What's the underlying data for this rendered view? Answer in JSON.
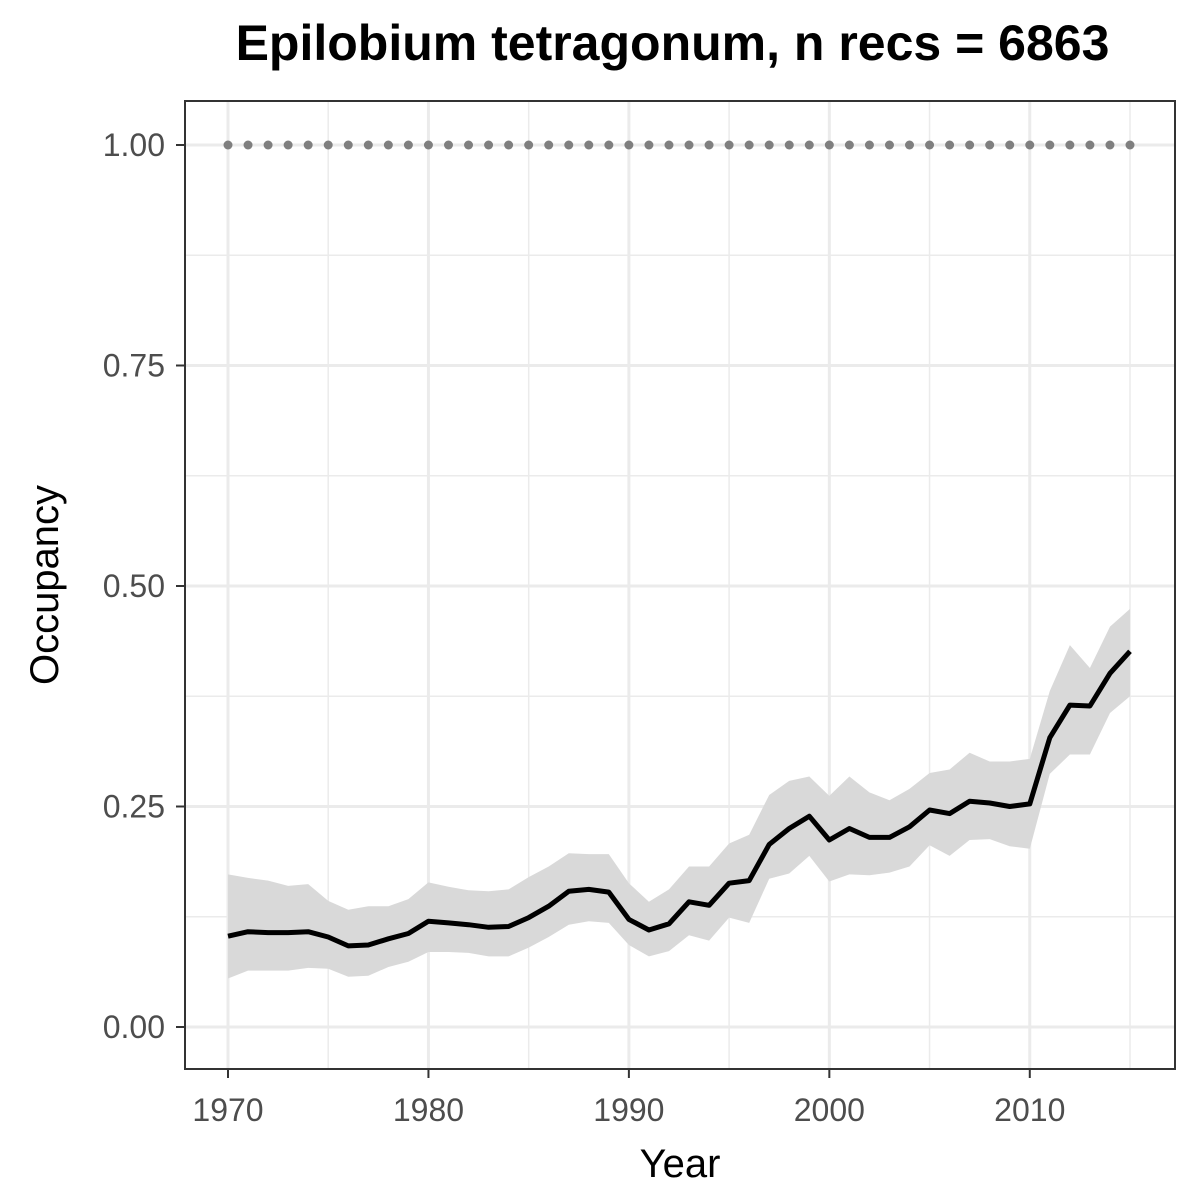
{
  "chart_data": {
    "type": "line",
    "title": "Epilobium tetragonum, n recs = 6863",
    "xlabel": "Year",
    "ylabel": "Occupancy",
    "xlim": [
      1970,
      2015
    ],
    "ylim": [
      0,
      1
    ],
    "x_ticks": [
      1970,
      1980,
      1990,
      2000,
      2010
    ],
    "x_tick_labels": [
      "1970",
      "1980",
      "1990",
      "2000",
      "2010"
    ],
    "y_ticks": [
      0,
      0.25,
      0.5,
      0.75,
      1.0
    ],
    "y_tick_labels": [
      "0.00",
      "0.25",
      "0.50",
      "0.75",
      "1.00"
    ],
    "grid": true,
    "colors": {
      "line": "#000000",
      "ribbon": "#d9d9d9",
      "dots": "#7f7f7f"
    },
    "x": [
      1970,
      1971,
      1972,
      1973,
      1974,
      1975,
      1976,
      1977,
      1978,
      1979,
      1980,
      1981,
      1982,
      1983,
      1984,
      1985,
      1986,
      1987,
      1988,
      1989,
      1990,
      1991,
      1992,
      1993,
      1994,
      1995,
      1996,
      1997,
      1998,
      1999,
      2000,
      2001,
      2002,
      2003,
      2004,
      2005,
      2006,
      2007,
      2008,
      2009,
      2010,
      2011,
      2012,
      2013,
      2014,
      2015
    ],
    "series": [
      {
        "values": [
          0.103,
          0.108,
          0.107,
          0.107,
          0.108,
          0.102,
          0.092,
          0.093,
          0.1,
          0.106,
          0.12,
          0.118,
          0.116,
          0.113,
          0.114,
          0.124,
          0.137,
          0.154,
          0.156,
          0.153,
          0.122,
          0.11,
          0.117,
          0.142,
          0.138,
          0.163,
          0.166,
          0.207,
          0.225,
          0.239,
          0.212,
          0.225,
          0.215,
          0.215,
          0.227,
          0.246,
          0.242,
          0.256,
          0.254,
          0.25,
          0.253,
          0.328,
          0.365,
          0.364,
          0.401,
          0.426
        ],
        "lower": [
          0.055,
          0.064,
          0.064,
          0.064,
          0.067,
          0.066,
          0.057,
          0.058,
          0.068,
          0.074,
          0.085,
          0.085,
          0.084,
          0.08,
          0.08,
          0.09,
          0.102,
          0.116,
          0.12,
          0.118,
          0.093,
          0.08,
          0.086,
          0.104,
          0.098,
          0.124,
          0.118,
          0.168,
          0.174,
          0.194,
          0.165,
          0.173,
          0.172,
          0.175,
          0.182,
          0.206,
          0.194,
          0.212,
          0.213,
          0.205,
          0.202,
          0.287,
          0.309,
          0.309,
          0.356,
          0.375
        ],
        "upper": [
          0.173,
          0.169,
          0.166,
          0.16,
          0.162,
          0.143,
          0.133,
          0.137,
          0.137,
          0.145,
          0.164,
          0.159,
          0.155,
          0.154,
          0.156,
          0.17,
          0.182,
          0.197,
          0.196,
          0.196,
          0.163,
          0.142,
          0.156,
          0.182,
          0.182,
          0.208,
          0.218,
          0.263,
          0.279,
          0.284,
          0.262,
          0.284,
          0.266,
          0.257,
          0.27,
          0.288,
          0.292,
          0.311,
          0.301,
          0.301,
          0.304,
          0.381,
          0.433,
          0.407,
          0.454,
          0.474
        ]
      },
      {
        "values": [
          1,
          1,
          1,
          1,
          1,
          1,
          1,
          1,
          1,
          1,
          1,
          1,
          1,
          1,
          1,
          1,
          1,
          1,
          1,
          1,
          1,
          1,
          1,
          1,
          1,
          1,
          1,
          1,
          1,
          1,
          1,
          1,
          1,
          1,
          1,
          1,
          1,
          1,
          1,
          1,
          1,
          1,
          1,
          1,
          1,
          1
        ]
      }
    ]
  }
}
